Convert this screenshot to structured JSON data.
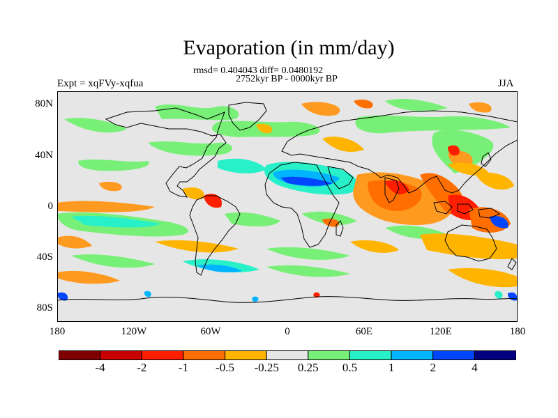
{
  "title": "Evaporation (in mm/day)",
  "stats_line": "rmsd= 0.404043 diff= 0.0480192",
  "period_line": "2752kyr BP - 0000kyr BP",
  "experiment_label": "Expt = xqFVy-xqfua",
  "season_label": "JJA",
  "map": {
    "projection": "cylindrical-equidistant",
    "lon_range": [
      -180,
      180
    ],
    "lat_range": [
      -90,
      90
    ],
    "background_color": "#e6e6e6",
    "y_ticks": [
      "80N",
      "40N",
      "0",
      "40S",
      "80S"
    ],
    "x_ticks": [
      "180",
      "120W",
      "60W",
      "0",
      "60E",
      "120E",
      "180"
    ]
  },
  "colorbar": {
    "colors": [
      "#7f0000",
      "#c80000",
      "#ff1e00",
      "#ff6e00",
      "#ffb400",
      "#e6e6e6",
      "#78f078",
      "#28f0c8",
      "#00b4ff",
      "#0046ff",
      "#000080"
    ],
    "labels": [
      "-4",
      "-2",
      "-1",
      "-0.5",
      "-0.25",
      "0.25",
      "0.5",
      "1",
      "2",
      "4"
    ]
  }
}
